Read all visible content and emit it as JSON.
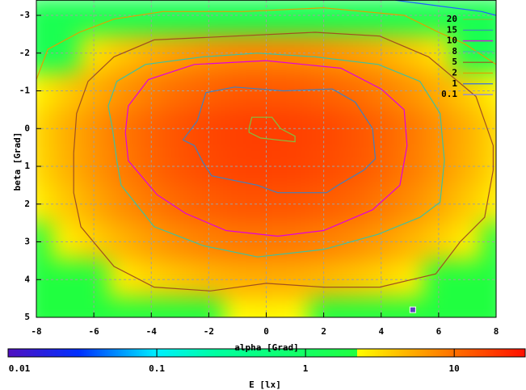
{
  "chart_data": {
    "type": "heatmap",
    "xlabel": "alpha [Grad]",
    "ylabel": "beta [Grad]",
    "xlim": [
      -8,
      8
    ],
    "ylim": [
      5,
      -3.4
    ],
    "xticks": [
      -8,
      -6,
      -4,
      -2,
      0,
      2,
      4,
      6,
      8
    ],
    "yticks": [
      -3,
      -2,
      -1,
      0,
      1,
      2,
      3,
      4,
      5
    ],
    "grid": true,
    "x": [
      -8,
      -7,
      -6,
      -5,
      -4,
      -3,
      -2,
      -1,
      0,
      1,
      2,
      3,
      4,
      5,
      6,
      7,
      8
    ],
    "y": [
      -3,
      -2,
      -1,
      0,
      1,
      2,
      3,
      4,
      5
    ],
    "z": [
      [
        1.5,
        1.5,
        1.5,
        1.5,
        1.5,
        1.5,
        1.5,
        1.5,
        1.5,
        1.5,
        1.5,
        1.5,
        1.5,
        1.5,
        1.5,
        1.5,
        1.5
      ],
      [
        1.5,
        1.5,
        3.0,
        4.0,
        5.1,
        6.1,
        7.0,
        7.6,
        7.8,
        7.6,
        7.0,
        6.1,
        5.1,
        4.0,
        3.0,
        1.5,
        1.5
      ],
      [
        2.5,
        3.7,
        5.1,
        6.8,
        8.6,
        10.4,
        11.8,
        12.8,
        13.1,
        12.8,
        11.8,
        10.4,
        8.6,
        6.8,
        5.1,
        3.7,
        2.5
      ],
      [
        3.3,
        5.0,
        6.9,
        9.3,
        11.7,
        14.1,
        16.1,
        17.4,
        17.9,
        17.4,
        16.1,
        14.1,
        11.7,
        9.3,
        6.9,
        5.0,
        3.3
      ],
      [
        3.2,
        4.8,
        6.7,
        8.9,
        11.3,
        13.6,
        15.5,
        16.8,
        17.2,
        16.8,
        15.5,
        13.6,
        11.3,
        8.9,
        6.7,
        4.8,
        3.2
      ],
      [
        2.6,
        3.8,
        5.4,
        7.2,
        9.1,
        10.9,
        12.4,
        13.4,
        13.8,
        13.4,
        12.4,
        10.9,
        9.1,
        7.2,
        5.4,
        3.8,
        2.6
      ],
      [
        2.2,
        2.6,
        3.6,
        4.8,
        6.1,
        7.3,
        8.3,
        9.0,
        9.2,
        9.0,
        8.3,
        7.3,
        6.1,
        4.8,
        3.6,
        2.6,
        2.2
      ],
      [
        2.2,
        2.2,
        2.2,
        2.7,
        3.4,
        4.0,
        4.6,
        5.0,
        5.1,
        5.0,
        4.6,
        4.0,
        3.4,
        2.7,
        2.2,
        2.2,
        2.2
      ],
      [
        2.2,
        2.2,
        2.2,
        2.2,
        2.2,
        2.2,
        2.2,
        2.3,
        2.4,
        2.3,
        2.2,
        2.2,
        2.2,
        2.2,
        2.2,
        2.2,
        2.2
      ]
    ],
    "contours": [
      {
        "level": 20,
        "color": "#80c040",
        "points": [
          [
            -0.6,
            0.0
          ],
          [
            -0.5,
            -0.3
          ],
          [
            0.2,
            -0.3
          ],
          [
            0.5,
            0.0
          ],
          [
            1.0,
            0.2
          ],
          [
            1.0,
            0.35
          ],
          [
            0.4,
            0.3
          ],
          [
            -0.2,
            0.25
          ],
          [
            -0.6,
            0.1
          ],
          [
            -0.6,
            0.0
          ]
        ]
      },
      {
        "level": 15,
        "color": "#4080c0",
        "points": [
          [
            -2.9,
            0.3
          ],
          [
            -2.4,
            -0.2
          ],
          [
            -2.1,
            -0.95
          ],
          [
            -1.1,
            -1.1
          ],
          [
            0.6,
            -1.0
          ],
          [
            2.3,
            -1.05
          ],
          [
            3.1,
            -0.7
          ],
          [
            3.7,
            0
          ],
          [
            3.8,
            0.8
          ],
          [
            3.4,
            1.1
          ],
          [
            2.5,
            1.5
          ],
          [
            2.1,
            1.7
          ],
          [
            0.4,
            1.7
          ],
          [
            -0.3,
            1.5
          ],
          [
            -1.9,
            1.25
          ],
          [
            -2.2,
            0.9
          ],
          [
            -2.5,
            0.45
          ],
          [
            -2.9,
            0.3
          ]
        ]
      },
      {
        "level": 10,
        "color": "#e000e0",
        "points": [
          [
            -4.9,
            0.1
          ],
          [
            -4.8,
            -0.6
          ],
          [
            -4.1,
            -1.3
          ],
          [
            -2.5,
            -1.7
          ],
          [
            0,
            -1.8
          ],
          [
            2.6,
            -1.6
          ],
          [
            4,
            -1.05
          ],
          [
            4.8,
            -0.5
          ],
          [
            4.9,
            0.45
          ],
          [
            4.65,
            1.5
          ],
          [
            3.7,
            2.15
          ],
          [
            2,
            2.7
          ],
          [
            0.4,
            2.85
          ],
          [
            -1.4,
            2.7
          ],
          [
            -2.8,
            2.25
          ],
          [
            -3.8,
            1.75
          ],
          [
            -4.8,
            0.85
          ],
          [
            -4.9,
            0.1
          ]
        ]
      },
      {
        "level": 8,
        "color": "#40c0a0",
        "points": [
          [
            -5.5,
            -0.6
          ],
          [
            -5.2,
            -1.25
          ],
          [
            -4.2,
            -1.7
          ],
          [
            -2.2,
            -1.9
          ],
          [
            -0.3,
            -2.0
          ],
          [
            1.7,
            -1.9
          ],
          [
            3.9,
            -1.7
          ],
          [
            5.35,
            -1.25
          ],
          [
            6.05,
            -0.4
          ],
          [
            6.2,
            0.85
          ],
          [
            6.05,
            1.95
          ],
          [
            5.35,
            2.35
          ],
          [
            3.9,
            2.8
          ],
          [
            2,
            3.2
          ],
          [
            -0.3,
            3.4
          ],
          [
            -2.2,
            3.1
          ],
          [
            -3.9,
            2.6
          ],
          [
            -5.05,
            1.5
          ],
          [
            -5.2,
            0.85
          ],
          [
            -5.35,
            0
          ],
          [
            -5.5,
            -0.6
          ]
        ]
      },
      {
        "level": 5,
        "color": "#a05020",
        "points": [
          [
            -6.7,
            0.65
          ],
          [
            -6.6,
            -0.4
          ],
          [
            -6.2,
            -1.25
          ],
          [
            -5.3,
            -1.9
          ],
          [
            -3.9,
            -2.35
          ],
          [
            -1.1,
            -2.45
          ],
          [
            1.7,
            -2.55
          ],
          [
            3.95,
            -2.45
          ],
          [
            5.65,
            -1.9
          ],
          [
            7.3,
            -0.85
          ],
          [
            7.9,
            0.45
          ],
          [
            7.9,
            1.1
          ],
          [
            7.6,
            2.35
          ],
          [
            6.75,
            3.0
          ],
          [
            5.9,
            3.85
          ],
          [
            3.95,
            4.2
          ],
          [
            2,
            4.2
          ],
          [
            0,
            4.1
          ],
          [
            -1.95,
            4.3
          ],
          [
            -3.9,
            4.2
          ],
          [
            -5.3,
            3.65
          ],
          [
            -6.45,
            2.6
          ],
          [
            -6.7,
            1.7
          ],
          [
            -6.7,
            0.65
          ]
        ]
      },
      {
        "level": 2,
        "color": "#e0a000",
        "points": [
          [
            -8,
            -1.3
          ],
          [
            -7.6,
            -2.1
          ],
          [
            -6.5,
            -2.55
          ],
          [
            -5.3,
            -2.9
          ],
          [
            -3.6,
            -3.1
          ],
          [
            -0.8,
            -3.1
          ],
          [
            2,
            -3.2
          ],
          [
            4.8,
            -3.0
          ],
          [
            6,
            -2.55
          ],
          [
            6.9,
            -2.25
          ],
          [
            8,
            -1.7
          ]
        ]
      },
      {
        "level": 1,
        "color": "#2060ff",
        "points": [
          [
            4.5,
            -3.4
          ],
          [
            5.5,
            -3.3
          ],
          [
            7.5,
            -3.1
          ],
          [
            8,
            -3.0
          ]
        ]
      },
      {
        "level": 0.1,
        "color": "#8080ff"
      }
    ],
    "point": {
      "x": 5.1,
      "y": 4.8
    },
    "colorbar": {
      "label": "E [lx]",
      "lim": [
        0.01,
        30
      ],
      "log": true,
      "ticks": [
        0.01,
        0.1,
        1,
        10
      ],
      "palette": [
        {
          "value": 0.01,
          "color": "#5010c0"
        },
        {
          "value": 0.03,
          "color": "#0030ff"
        },
        {
          "value": 0.1,
          "color": "#00f0ff"
        },
        {
          "value": 0.25,
          "color": "#00ffa0"
        },
        {
          "value": 2.2,
          "color": "#20ff40"
        },
        {
          "value": 2.2,
          "color": "#ffff00"
        },
        {
          "value": 5,
          "color": "#ffb000"
        },
        {
          "value": 10,
          "color": "#ff7000"
        },
        {
          "value": 30,
          "color": "#ff1000"
        }
      ]
    }
  }
}
